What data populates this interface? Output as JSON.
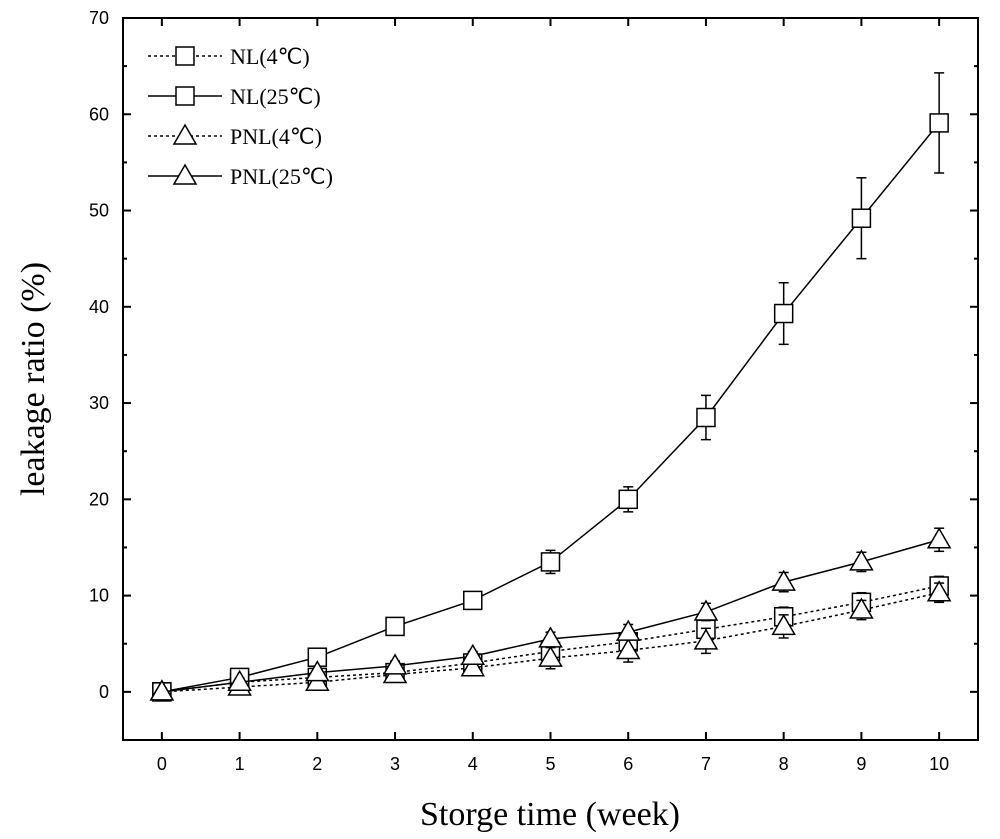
{
  "chart_data": {
    "type": "line",
    "xlabel": "Storge  time (week)",
    "ylabel": "leakage  ratio (%)",
    "xlim": [
      -0.5,
      10.5
    ],
    "ylim": [
      -5,
      70
    ],
    "xticks": [
      0,
      1,
      2,
      3,
      4,
      5,
      6,
      7,
      8,
      9,
      10
    ],
    "yticks": [
      0,
      10,
      20,
      30,
      40,
      50,
      60,
      70
    ],
    "grid": false,
    "legend_position": "top-left",
    "x": [
      0,
      1,
      2,
      3,
      4,
      5,
      6,
      7,
      8,
      9,
      10
    ],
    "series": [
      {
        "name": "NL(4℃)",
        "marker": "square",
        "linestyle": "dotted",
        "values": [
          0,
          1.0,
          1.5,
          2.0,
          3.0,
          4.2,
          5.2,
          6.5,
          7.8,
          9.3,
          11.0
        ],
        "errors": [
          0.3,
          0.4,
          0.5,
          0.5,
          0.6,
          0.8,
          0.9,
          1.0,
          1.0,
          1.0,
          1.0
        ]
      },
      {
        "name": "NL(25℃)",
        "marker": "square",
        "linestyle": "solid",
        "values": [
          0,
          1.5,
          3.6,
          6.8,
          9.5,
          13.5,
          20.0,
          28.5,
          39.3,
          49.2,
          59.1
        ],
        "errors": [
          0.2,
          0.4,
          0.5,
          0.5,
          0.6,
          1.2,
          1.3,
          2.3,
          3.2,
          4.2,
          5.2
        ]
      },
      {
        "name": "PNL(4℃)",
        "marker": "triangle",
        "linestyle": "dotted",
        "values": [
          0,
          0.5,
          1.0,
          1.8,
          2.5,
          3.5,
          4.3,
          5.3,
          6.8,
          8.5,
          10.3
        ],
        "errors": [
          0.3,
          0.5,
          0.6,
          0.7,
          0.8,
          1.1,
          1.2,
          1.3,
          1.2,
          1.0,
          1.0
        ]
      },
      {
        "name": "PNL(25℃)",
        "marker": "triangle",
        "linestyle": "solid",
        "values": [
          0,
          1.0,
          2.0,
          2.7,
          3.7,
          5.5,
          6.2,
          8.3,
          11.4,
          13.5,
          15.8
        ],
        "errors": [
          0.2,
          0.4,
          0.4,
          0.5,
          0.5,
          0.7,
          0.8,
          0.9,
          1.0,
          1.0,
          1.2
        ]
      }
    ]
  }
}
